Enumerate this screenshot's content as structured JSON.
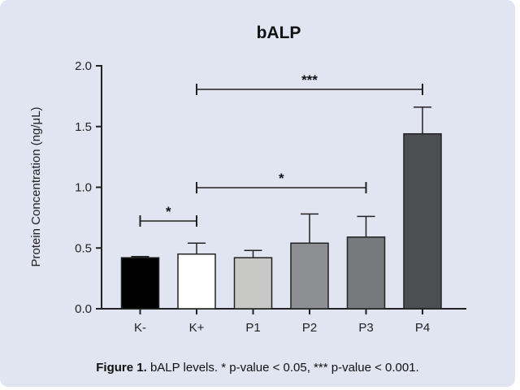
{
  "chart_data": {
    "type": "bar",
    "title": "bALP",
    "xlabel": "",
    "ylabel": "Protein Concentration (ng/μL)",
    "ylim": [
      0,
      2.0
    ],
    "yticks": [
      "0.0",
      "0.5",
      "1.0",
      "1.5",
      "2.0"
    ],
    "ytick_values": [
      0,
      0.5,
      1.0,
      1.5,
      2.0
    ],
    "categories": [
      "K-",
      "K+",
      "P1",
      "P2",
      "P3",
      "P4"
    ],
    "values": [
      0.42,
      0.45,
      0.42,
      0.54,
      0.59,
      1.44
    ],
    "error_upper": [
      0.43,
      0.54,
      0.48,
      0.78,
      0.76,
      1.66
    ],
    "bar_colors": [
      "#000000",
      "#ffffff",
      "#c8c9c7",
      "#8e8f93",
      "#777a7c",
      "#4b4f52"
    ],
    "grid": false,
    "significance": [
      {
        "from": 0,
        "to": 1,
        "label": "*"
      },
      {
        "from": 1,
        "to": 4,
        "label": "*"
      },
      {
        "from": 1,
        "to": 5,
        "label": "***"
      }
    ]
  },
  "caption": {
    "label": "Figure 1.",
    "text": " bALP levels. * p-value < 0.05, *** p-value < 0.001."
  },
  "colors": {
    "panel_background": "#e1e4f1",
    "axis": "#222222"
  }
}
